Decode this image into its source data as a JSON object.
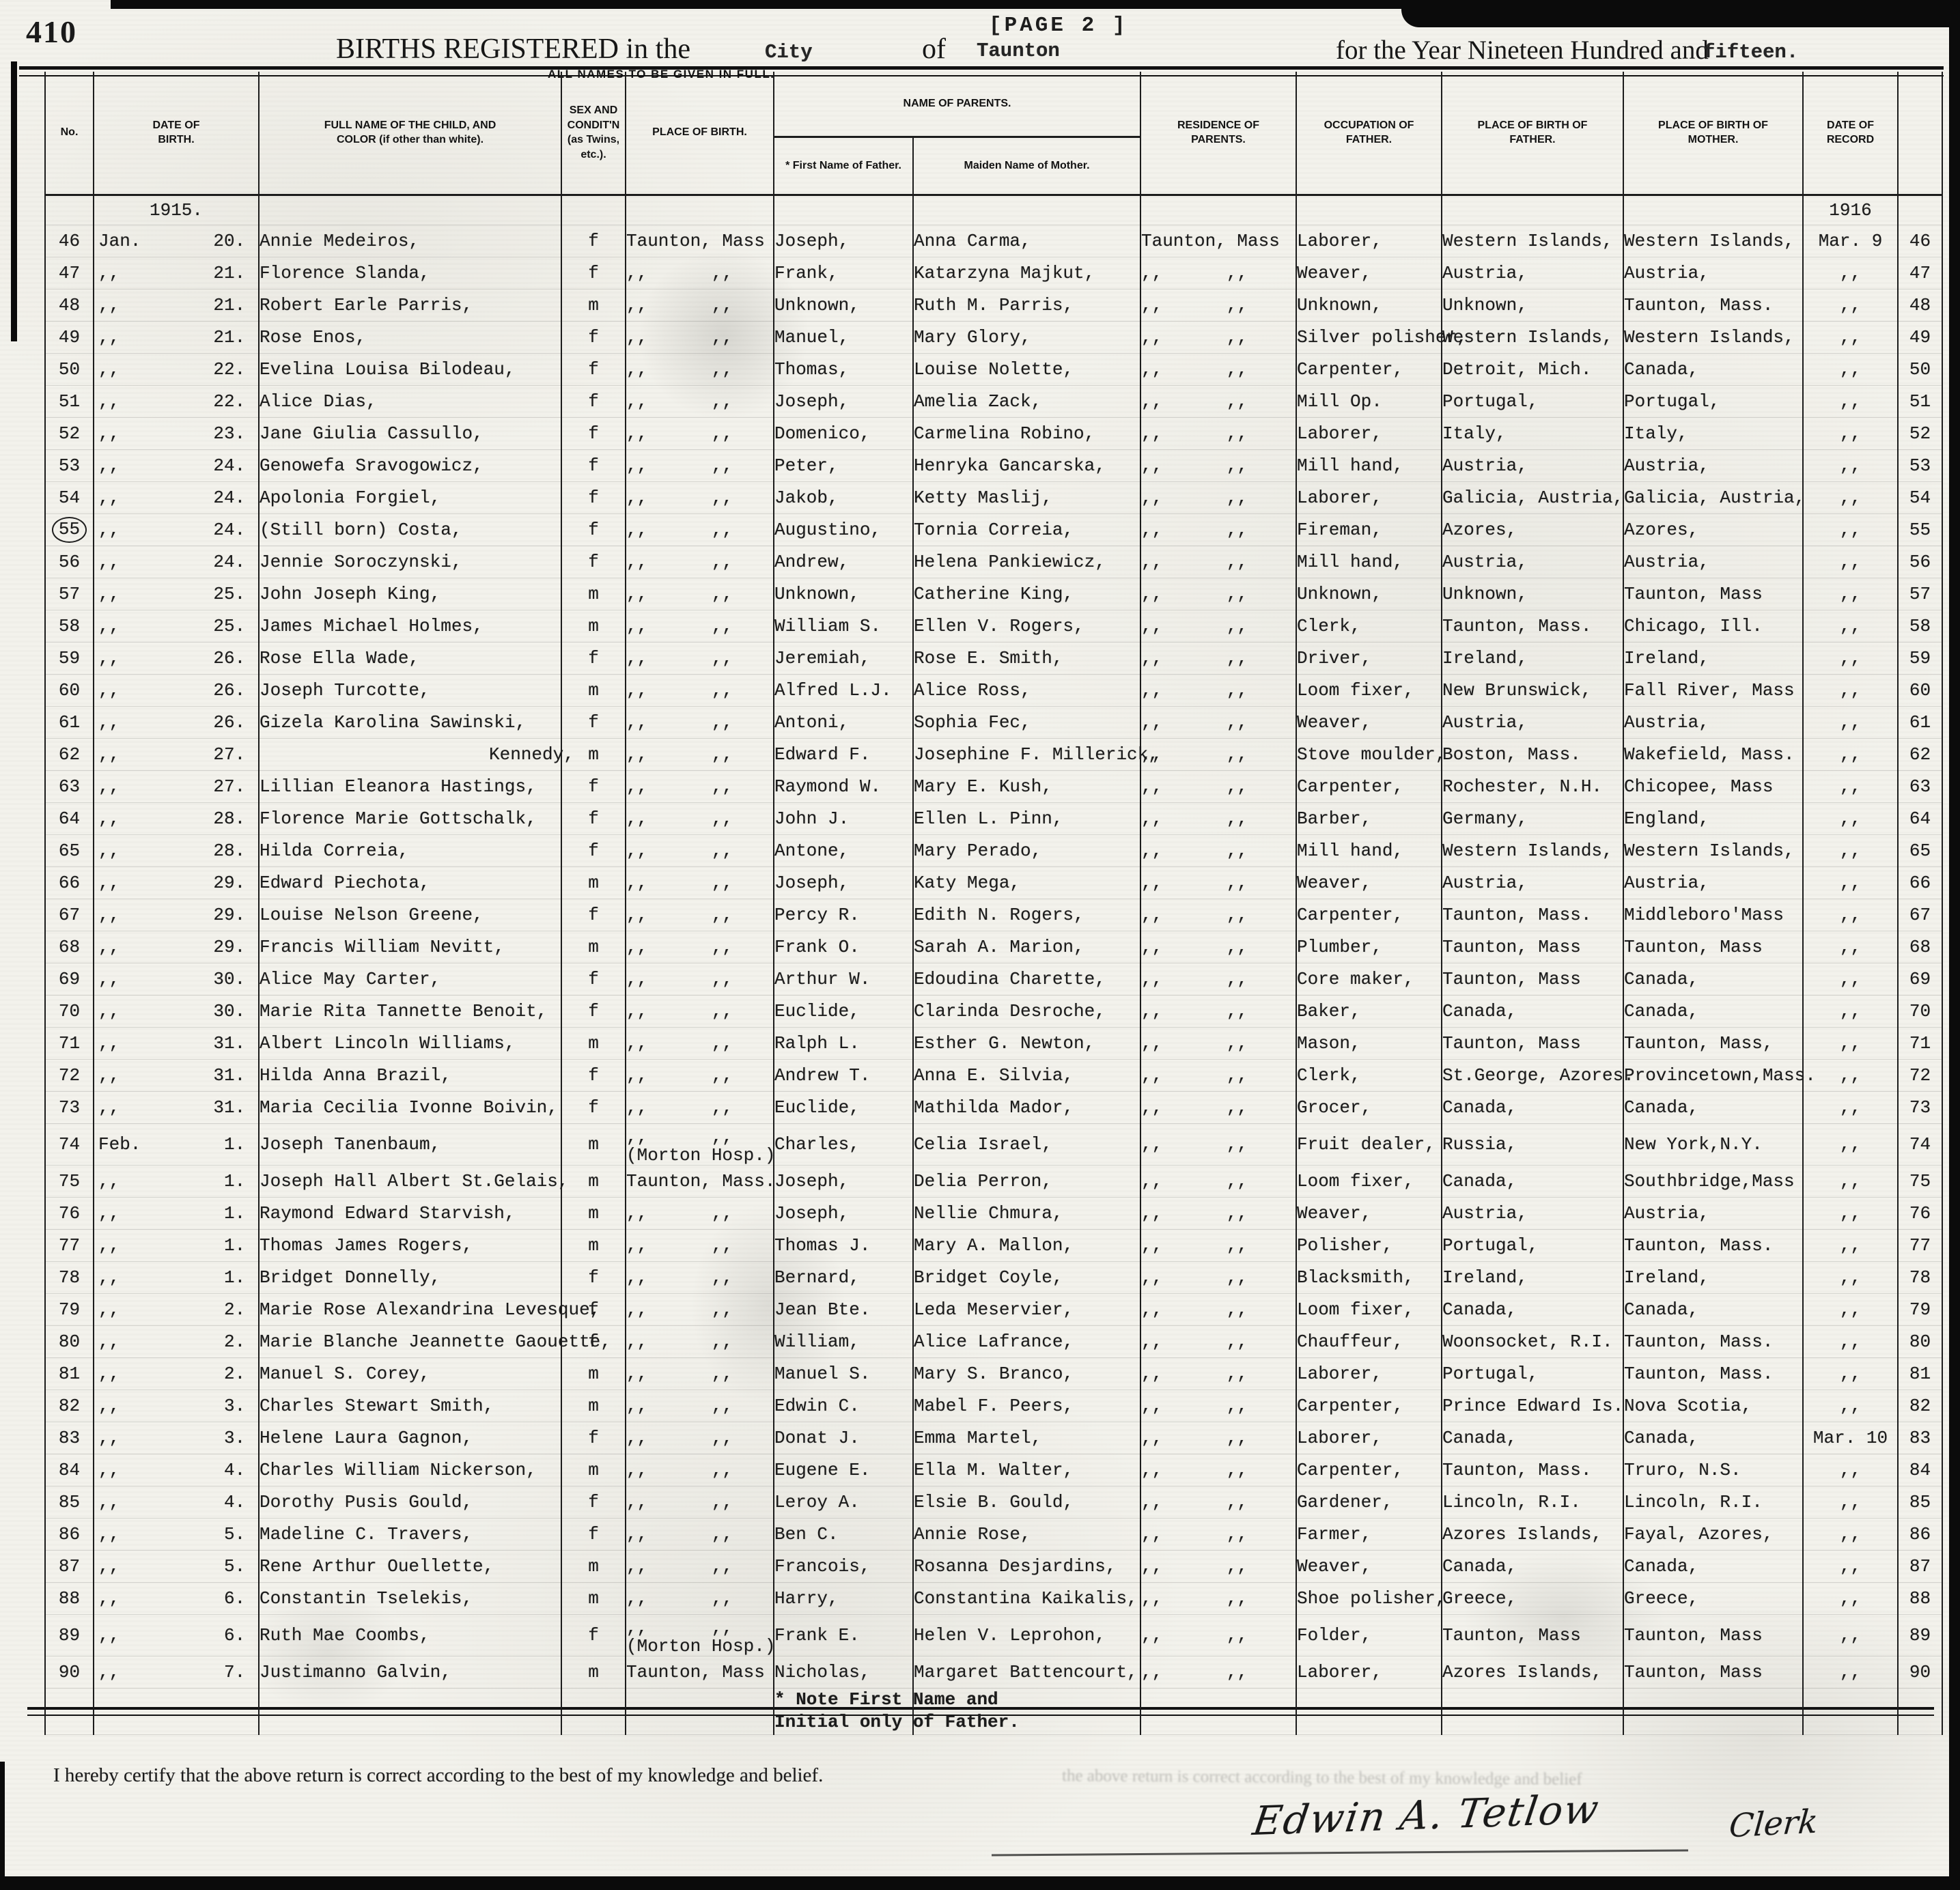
{
  "page": {
    "page_number": "410",
    "page_tag": "[PAGE 2 ]",
    "title": {
      "pre": "BIRTHS REGISTERED in the",
      "jurisdiction_type": "City",
      "of_word": "of",
      "jurisdiction": "Taunton",
      "post": "for the Year Nineteen Hundred and",
      "year_word": "fifteen."
    },
    "subtitle": "ALL NAMES TO BE GIVEN IN FULL.",
    "certification": "I hereby certify that the above return is correct according to the best of my knowledge and belief.",
    "bleed_text": "the above return is correct according to the best of my knowledge and belief",
    "signature": {
      "name": "Edwin A. Tetlow",
      "role": "Clerk"
    }
  },
  "table": {
    "headers": {
      "no": "No.",
      "date": "DATE OF\nBIRTH.",
      "name": "FULL NAME OF THE CHILD, AND\nCOLOR (if other than white).",
      "sex": "SEX AND\nCONDIT'N\n(as Twins,\netc.).",
      "pob": "PLACE OF BIRTH.",
      "parents": "NAME OF PARENTS.",
      "father_sub": "* First Name of Father.",
      "mother_sub": "Maiden Name of Mother.",
      "residence": "RESIDENCE OF\nPARENTS.",
      "occupation": "OCCUPATION OF\nFATHER.",
      "pob_father": "PLACE OF BIRTH OF\nFATHER.",
      "pob_mother": "PLACE OF BIRTH OF\nMOTHER.",
      "record": "DATE OF\nRECORD",
      "blank": ""
    },
    "year_row": {
      "birth_year": "1915.",
      "record_year": "1916"
    },
    "father_note": "* Note First Name and\nInitial only of Father.",
    "rows": [
      {
        "n": "46",
        "m": "Jan.",
        "d": "20.",
        "nm": "Annie Medeiros,",
        "sx": "f",
        "pb": "Taunton, Mass",
        "fa": "Joseph,",
        "mo": "Anna Carma,",
        "rs": "Taunton, Mass",
        "oc": "Laborer,",
        "pf": "Western Islands,",
        "pm": "Western Islands,",
        "rc": "Mar. 9"
      },
      {
        "n": "47",
        "m": ",,",
        "d": "21.",
        "nm": "Florence Slanda,",
        "sx": "f",
        "pb": ",,      ,,",
        "fa": "Frank,",
        "mo": "Katarzyna Majkut,",
        "rs": ",,      ,,",
        "oc": "Weaver,",
        "pf": "Austria,",
        "pm": "Austria,",
        "rc": ",,"
      },
      {
        "n": "48",
        "m": ",,",
        "d": "21.",
        "nm": "Robert Earle Parris,",
        "sx": "m",
        "pb": ",,      ,,",
        "fa": "Unknown,",
        "mo": "Ruth M. Parris,",
        "rs": ",,      ,,",
        "oc": "Unknown,",
        "pf": "Unknown,",
        "pm": "Taunton, Mass.",
        "rc": ",,"
      },
      {
        "n": "49",
        "m": ",,",
        "d": "21.",
        "nm": "Rose Enos,",
        "sx": "f",
        "pb": ",,      ,,",
        "fa": "Manuel,",
        "mo": "Mary Glory,",
        "rs": ",,      ,,",
        "oc": "Silver polisher,",
        "pf": "Western Islands,",
        "pm": "Western Islands,",
        "rc": ",,"
      },
      {
        "n": "50",
        "m": ",,",
        "d": "22.",
        "nm": "Evelina Louisa Bilodeau,",
        "sx": "f",
        "pb": ",,      ,,",
        "fa": "Thomas,",
        "mo": "Louise Nolette,",
        "rs": ",,      ,,",
        "oc": "Carpenter,",
        "pf": "Detroit, Mich.",
        "pm": "Canada,",
        "rc": ",,"
      },
      {
        "n": "51",
        "m": ",,",
        "d": "22.",
        "nm": "Alice Dias,",
        "sx": "f",
        "pb": ",,      ,,",
        "fa": "Joseph,",
        "mo": "Amelia Zack,",
        "rs": ",,      ,,",
        "oc": "Mill Op.",
        "pf": "Portugal,",
        "pm": "Portugal,",
        "rc": ",,"
      },
      {
        "n": "52",
        "m": ",,",
        "d": "23.",
        "nm": "Jane Giulia Cassullo,",
        "sx": "f",
        "pb": ",,      ,,",
        "fa": "Domenico,",
        "mo": "Carmelina Robino,",
        "rs": ",,      ,,",
        "oc": "Laborer,",
        "pf": "Italy,",
        "pm": "Italy,",
        "rc": ",,"
      },
      {
        "n": "53",
        "m": ",,",
        "d": "24.",
        "nm": "Genowefa Sravogowicz,",
        "sx": "f",
        "pb": ",,      ,,",
        "fa": "Peter,",
        "mo": "Henryka Gancarska,",
        "rs": ",,      ,,",
        "oc": "Mill hand,",
        "pf": "Austria,",
        "pm": "Austria,",
        "rc": ",,"
      },
      {
        "n": "54",
        "m": ",,",
        "d": "24.",
        "nm": "Apolonia Forgiel,",
        "sx": "f",
        "pb": ",,      ,,",
        "fa": "Jakob,",
        "mo": "Ketty Maslij,",
        "rs": ",,      ,,",
        "oc": "Laborer,",
        "pf": "Galicia, Austria,",
        "pm": "Galicia, Austria,",
        "rc": ",,"
      },
      {
        "n": "55",
        "m": ",,",
        "d": "24.",
        "nm": "(Still born) Costa,",
        "sx": "f",
        "pb": ",,      ,,",
        "fa": "Augustino,",
        "mo": "Tornia Correia,",
        "rs": ",,      ,,",
        "oc": "Fireman,",
        "pf": "Azores,",
        "pm": "Azores,",
        "rc": ",,",
        "fl": "circle"
      },
      {
        "n": "56",
        "m": ",,",
        "d": "24.",
        "nm": "Jennie Soroczynski,",
        "sx": "f",
        "pb": ",,      ,,",
        "fa": "Andrew,",
        "mo": "Helena Pankiewicz,",
        "rs": ",,      ,,",
        "oc": "Mill hand,",
        "pf": "Austria,",
        "pm": "Austria,",
        "rc": ",,"
      },
      {
        "n": "57",
        "m": ",,",
        "d": "25.",
        "nm": "John Joseph King,",
        "sx": "m",
        "pb": ",,      ,,",
        "fa": "Unknown,",
        "mo": "Catherine King,",
        "rs": ",,      ,,",
        "oc": "Unknown,",
        "pf": "Unknown,",
        "pm": "Taunton, Mass",
        "rc": ",,"
      },
      {
        "n": "58",
        "m": ",,",
        "d": "25.",
        "nm": "James Michael Holmes,",
        "sx": "m",
        "pb": ",,      ,,",
        "fa": "William S.",
        "mo": "Ellen V. Rogers,",
        "rs": ",,      ,,",
        "oc": "Clerk,",
        "pf": "Taunton, Mass.",
        "pm": "Chicago, Ill.",
        "rc": ",,"
      },
      {
        "n": "59",
        "m": ",,",
        "d": "26.",
        "nm": "Rose Ella Wade,",
        "sx": "f",
        "pb": ",,      ,,",
        "fa": "Jeremiah,",
        "mo": "Rose E. Smith,",
        "rs": ",,      ,,",
        "oc": "Driver,",
        "pf": "Ireland,",
        "pm": "Ireland,",
        "rc": ",,"
      },
      {
        "n": "60",
        "m": ",,",
        "d": "26.",
        "nm": "Joseph Turcotte,",
        "sx": "m",
        "pb": ",,      ,,",
        "fa": "Alfred L.J.",
        "mo": "Alice Ross,",
        "rs": ",,      ,,",
        "oc": "Loom fixer,",
        "pf": "New Brunswick,",
        "pm": "Fall River, Mass",
        "rc": ",,"
      },
      {
        "n": "61",
        "m": ",,",
        "d": "26.",
        "nm": "Gizela Karolina Sawinski,",
        "sx": "f",
        "pb": ",,      ,,",
        "fa": "Antoni,",
        "mo": "Sophia Fec,",
        "rs": ",,      ,,",
        "oc": "Weaver,",
        "pf": "Austria,",
        "pm": "Austria,",
        "rc": ",,"
      },
      {
        "n": "62",
        "m": ",,",
        "d": "27.",
        "nm": "Kennedy,",
        "sx": "m",
        "pb": ",,      ,,",
        "fa": "Edward F.",
        "mo": "Josephine F. Millerick,",
        "rs": ",,      ,,",
        "oc": "Stove moulder,",
        "pf": "Boston, Mass.",
        "pm": "Wakefield, Mass.",
        "rc": ",,",
        "fl": "indent"
      },
      {
        "n": "63",
        "m": ",,",
        "d": "27.",
        "nm": "Lillian Eleanora Hastings,",
        "sx": "f",
        "pb": ",,      ,,",
        "fa": "Raymond W.",
        "mo": "Mary E. Kush,",
        "rs": ",,      ,,",
        "oc": "Carpenter,",
        "pf": "Rochester, N.H.",
        "pm": "Chicopee, Mass",
        "rc": ",,"
      },
      {
        "n": "64",
        "m": ",,",
        "d": "28.",
        "nm": "Florence Marie Gottschalk,",
        "sx": "f",
        "pb": ",,      ,,",
        "fa": "John J.",
        "mo": "Ellen L. Pinn,",
        "rs": ",,      ,,",
        "oc": "Barber,",
        "pf": "Germany,",
        "pm": "England,",
        "rc": ",,"
      },
      {
        "n": "65",
        "m": ",,",
        "d": "28.",
        "nm": "Hilda Correia,",
        "sx": "f",
        "pb": ",,      ,,",
        "fa": "Antone,",
        "mo": "Mary Perado,",
        "rs": ",,      ,,",
        "oc": "Mill hand,",
        "pf": "Western Islands,",
        "pm": "Western Islands,",
        "rc": ",,"
      },
      {
        "n": "66",
        "m": ",,",
        "d": "29.",
        "nm": "Edward Piechota,",
        "sx": "m",
        "pb": ",,      ,,",
        "fa": "Joseph,",
        "mo": "Katy Mega,",
        "rs": ",,      ,,",
        "oc": "Weaver,",
        "pf": "Austria,",
        "pm": "Austria,",
        "rc": ",,"
      },
      {
        "n": "67",
        "m": ",,",
        "d": "29.",
        "nm": "Louise Nelson Greene,",
        "sx": "f",
        "pb": ",,      ,,",
        "fa": "Percy R.",
        "mo": "Edith N. Rogers,",
        "rs": ",,      ,,",
        "oc": "Carpenter,",
        "pf": "Taunton, Mass.",
        "pm": "Middleboro'Mass",
        "rc": ",,"
      },
      {
        "n": "68",
        "m": ",,",
        "d": "29.",
        "nm": "Francis William Nevitt,",
        "sx": "m",
        "pb": ",,      ,,",
        "fa": "Frank O.",
        "mo": "Sarah A. Marion,",
        "rs": ",,      ,,",
        "oc": "Plumber,",
        "pf": "Taunton, Mass",
        "pm": "Taunton, Mass",
        "rc": ",,"
      },
      {
        "n": "69",
        "m": ",,",
        "d": "30.",
        "nm": "Alice May Carter,",
        "sx": "f",
        "pb": ",,      ,,",
        "fa": "Arthur W.",
        "mo": "Edoudina Charette,",
        "rs": ",,      ,,",
        "oc": "Core maker,",
        "pf": "Taunton, Mass",
        "pm": "Canada,",
        "rc": ",,"
      },
      {
        "n": "70",
        "m": ",,",
        "d": "30.",
        "nm": "Marie Rita Tannette Benoit,",
        "sx": "f",
        "pb": ",,      ,,",
        "fa": "Euclide,",
        "mo": "Clarinda Desroche,",
        "rs": ",,      ,,",
        "oc": "Baker,",
        "pf": "Canada,",
        "pm": "Canada,",
        "rc": ",,"
      },
      {
        "n": "71",
        "m": ",,",
        "d": "31.",
        "nm": "Albert Lincoln Williams,",
        "sx": "m",
        "pb": ",,      ,,",
        "fa": "Ralph L.",
        "mo": "Esther G. Newton,",
        "rs": ",,      ,,",
        "oc": "Mason,",
        "pf": "Taunton, Mass",
        "pm": "Taunton, Mass,",
        "rc": ",,"
      },
      {
        "n": "72",
        "m": ",,",
        "d": "31.",
        "nm": "Hilda Anna Brazil,",
        "sx": "f",
        "pb": ",,      ,,",
        "fa": "Andrew T.",
        "mo": "Anna E. Silvia,",
        "rs": ",,      ,,",
        "oc": "Clerk,",
        "pf": "St.George, Azores.",
        "pm": "Provincetown,Mass.",
        "rc": ",,"
      },
      {
        "n": "73",
        "m": ",,",
        "d": "31.",
        "nm": "Maria Cecilia Ivonne Boivin,",
        "sx": "f",
        "pb": ",,      ,,",
        "fa": "Euclide,",
        "mo": "Mathilda Mador,",
        "rs": ",,      ,,",
        "oc": "Grocer,",
        "pf": "Canada,",
        "pm": "Canada,",
        "rc": ",,"
      },
      {
        "n": "74",
        "m": "Feb.",
        "d": "1.",
        "nm": "Joseph Tanenbaum,",
        "sx": "m",
        "pb": [
          ",,      ,,",
          "(Morton Hosp.)"
        ],
        "fa": "Charles,",
        "mo": "Celia Israel,",
        "rs": ",,      ,,",
        "oc": "Fruit dealer,",
        "pf": "Russia,",
        "pm": "New York,N.Y.",
        "rc": ",,"
      },
      {
        "n": "75",
        "m": ",,",
        "d": "1.",
        "nm": "Joseph Hall Albert St.Gelais,",
        "sx": "m",
        "pb": "Taunton, Mass.",
        "fa": "Joseph,",
        "mo": "Delia Perron,",
        "rs": ",,      ,,",
        "oc": "Loom fixer,",
        "pf": "Canada,",
        "pm": "Southbridge,Mass",
        "rc": ",,"
      },
      {
        "n": "76",
        "m": ",,",
        "d": "1.",
        "nm": "Raymond Edward Starvish,",
        "sx": "m",
        "pb": ",,      ,,",
        "fa": "Joseph,",
        "mo": "Nellie Chmura,",
        "rs": ",,      ,,",
        "oc": "Weaver,",
        "pf": "Austria,",
        "pm": "Austria,",
        "rc": ",,"
      },
      {
        "n": "77",
        "m": ",,",
        "d": "1.",
        "nm": "Thomas James Rogers,",
        "sx": "m",
        "pb": ",,      ,,",
        "fa": "Thomas J.",
        "mo": "Mary A. Mallon,",
        "rs": ",,      ,,",
        "oc": "Polisher,",
        "pf": "Portugal,",
        "pm": "Taunton, Mass.",
        "rc": ",,"
      },
      {
        "n": "78",
        "m": ",,",
        "d": "1.",
        "nm": "Bridget Donnelly,",
        "sx": "f",
        "pb": ",,      ,,",
        "fa": "Bernard,",
        "mo": "Bridget Coyle,",
        "rs": ",,      ,,",
        "oc": "Blacksmith,",
        "pf": "Ireland,",
        "pm": "Ireland,",
        "rc": ",,"
      },
      {
        "n": "79",
        "m": ",,",
        "d": "2.",
        "nm": "Marie Rose Alexandrina Levesque,",
        "sx": "f",
        "pb": ",,      ,,",
        "fa": "Jean Bte.",
        "mo": "Leda Meservier,",
        "rs": ",,      ,,",
        "oc": "Loom fixer,",
        "pf": "Canada,",
        "pm": "Canada,",
        "rc": ",,"
      },
      {
        "n": "80",
        "m": ",,",
        "d": "2.",
        "nm": "Marie Blanche Jeannette Gaouette,",
        "sx": "f",
        "pb": ",,      ,,",
        "fa": "William,",
        "mo": "Alice Lafrance,",
        "rs": ",,      ,,",
        "oc": "Chauffeur,",
        "pf": "Woonsocket, R.I.",
        "pm": "Taunton, Mass.",
        "rc": ",,"
      },
      {
        "n": "81",
        "m": ",,",
        "d": "2.",
        "nm": "Manuel S. Corey,",
        "sx": "m",
        "pb": ",,      ,,",
        "fa": "Manuel S.",
        "mo": "Mary S. Branco,",
        "rs": ",,      ,,",
        "oc": "Laborer,",
        "pf": "Portugal,",
        "pm": "Taunton, Mass.",
        "rc": ",,"
      },
      {
        "n": "82",
        "m": ",,",
        "d": "3.",
        "nm": "Charles Stewart Smith,",
        "sx": "m",
        "pb": ",,      ,,",
        "fa": "Edwin C.",
        "mo": "Mabel F. Peers,",
        "rs": ",,      ,,",
        "oc": "Carpenter,",
        "pf": "Prince Edward Is.",
        "pm": "Nova Scotia,",
        "rc": ",,"
      },
      {
        "n": "83",
        "m": ",,",
        "d": "3.",
        "nm": "Helene Laura Gagnon,",
        "sx": "f",
        "pb": ",,      ,,",
        "fa": "Donat J.",
        "mo": "Emma Martel,",
        "rs": ",,      ,,",
        "oc": "Laborer,",
        "pf": "Canada,",
        "pm": "Canada,",
        "rc": "Mar. 10"
      },
      {
        "n": "84",
        "m": ",,",
        "d": "4.",
        "nm": "Charles William Nickerson,",
        "sx": "m",
        "pb": ",,      ,,",
        "fa": "Eugene E.",
        "mo": "Ella M. Walter,",
        "rs": ",,      ,,",
        "oc": "Carpenter,",
        "pf": "Taunton, Mass.",
        "pm": "Truro, N.S.",
        "rc": ",,"
      },
      {
        "n": "85",
        "m": ",,",
        "d": "4.",
        "nm": "Dorothy Pusis Gould,",
        "sx": "f",
        "pb": ",,      ,,",
        "fa": "Leroy A.",
        "mo": "Elsie B. Gould,",
        "rs": ",,      ,,",
        "oc": "Gardener,",
        "pf": "Lincoln, R.I.",
        "pm": "Lincoln, R.I.",
        "rc": ",,"
      },
      {
        "n": "86",
        "m": ",,",
        "d": "5.",
        "nm": "Madeline C. Travers,",
        "sx": "f",
        "pb": ",,      ,,",
        "fa": "Ben C.",
        "mo": "Annie Rose,",
        "rs": ",,      ,,",
        "oc": "Farmer,",
        "pf": "Azores Islands,",
        "pm": "Fayal, Azores,",
        "rc": ",,"
      },
      {
        "n": "87",
        "m": ",,",
        "d": "5.",
        "nm": "Rene Arthur Ouellette,",
        "sx": "m",
        "pb": ",,      ,,",
        "fa": "Francois,",
        "mo": "Rosanna Desjardins,",
        "rs": ",,      ,,",
        "oc": "Weaver,",
        "pf": "Canada,",
        "pm": "Canada,",
        "rc": ",,"
      },
      {
        "n": "88",
        "m": ",,",
        "d": "6.",
        "nm": "Constantin Tselekis,",
        "sx": "m",
        "pb": ",,      ,,",
        "fa": "Harry,",
        "mo": "Constantina Kaikalis,",
        "rs": ",,      ,,",
        "oc": "Shoe polisher,",
        "pf": "Greece,",
        "pm": "Greece,",
        "rc": ",,"
      },
      {
        "n": "89",
        "m": ",,",
        "d": "6.",
        "nm": "Ruth Mae Coombs,",
        "sx": "f",
        "pb": [
          ",,      ,,",
          "(Morton Hosp.)"
        ],
        "fa": "Frank E.",
        "mo": "Helen V. Leprohon,",
        "rs": ",,      ,,",
        "oc": "Folder,",
        "pf": "Taunton, Mass",
        "pm": "Taunton, Mass",
        "rc": ",,"
      },
      {
        "n": "90",
        "m": ",,",
        "d": "7.",
        "nm": "Justimanno Galvin,",
        "sx": "m",
        "pb": "Taunton, Mass",
        "fa": "Nicholas,",
        "mo": "Margaret Battencourt,",
        "rs": ",,      ,,",
        "oc": "Laborer,",
        "pf": "Azores Islands,",
        "pm": "Taunton, Mass",
        "rc": ",,"
      }
    ]
  }
}
